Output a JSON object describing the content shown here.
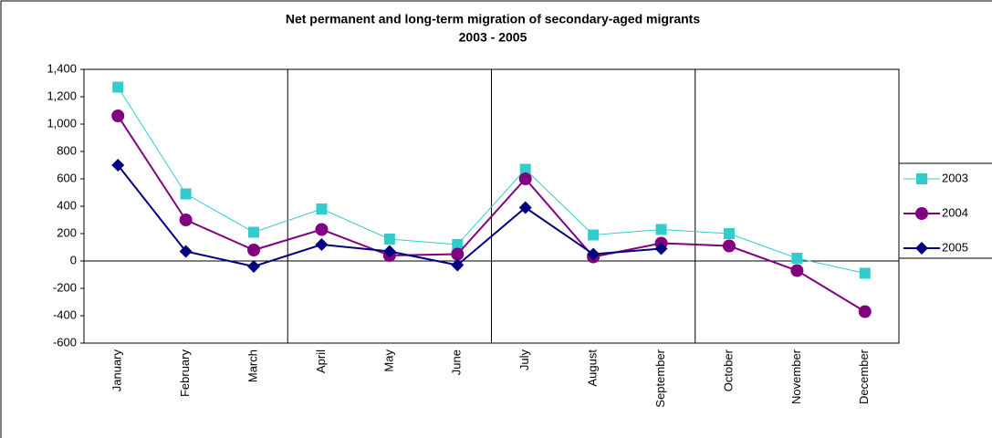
{
  "chart_data": {
    "type": "line",
    "title": "Net permanent and long-term migration of secondary-aged migrants",
    "subtitle": "2003 - 2005",
    "categories": [
      "January",
      "February",
      "March",
      "April",
      "May",
      "June",
      "July",
      "August",
      "September",
      "October",
      "November",
      "December"
    ],
    "series": [
      {
        "name": "2003",
        "color": "#33cccc",
        "marker": "square",
        "values": [
          1270,
          490,
          210,
          380,
          160,
          120,
          670,
          190,
          230,
          200,
          20,
          -90
        ]
      },
      {
        "name": "2004",
        "color": "#800080",
        "marker": "circle",
        "values": [
          1060,
          300,
          80,
          230,
          40,
          50,
          600,
          30,
          130,
          110,
          -70,
          -370
        ]
      },
      {
        "name": "2005",
        "color": "#000080",
        "marker": "diamond",
        "values": [
          700,
          70,
          -40,
          120,
          70,
          -30,
          390,
          50,
          90,
          null,
          null,
          null
        ]
      }
    ],
    "ylim": [
      -600,
      1400
    ],
    "yticks": [
      -600,
      -400,
      -200,
      0,
      200,
      400,
      600,
      800,
      {
        "value": 1000,
        "label": "1,000"
      },
      {
        "value": 1200,
        "label": "1,200"
      },
      {
        "value": 1400,
        "label": "1,400"
      }
    ],
    "legend": "right"
  }
}
